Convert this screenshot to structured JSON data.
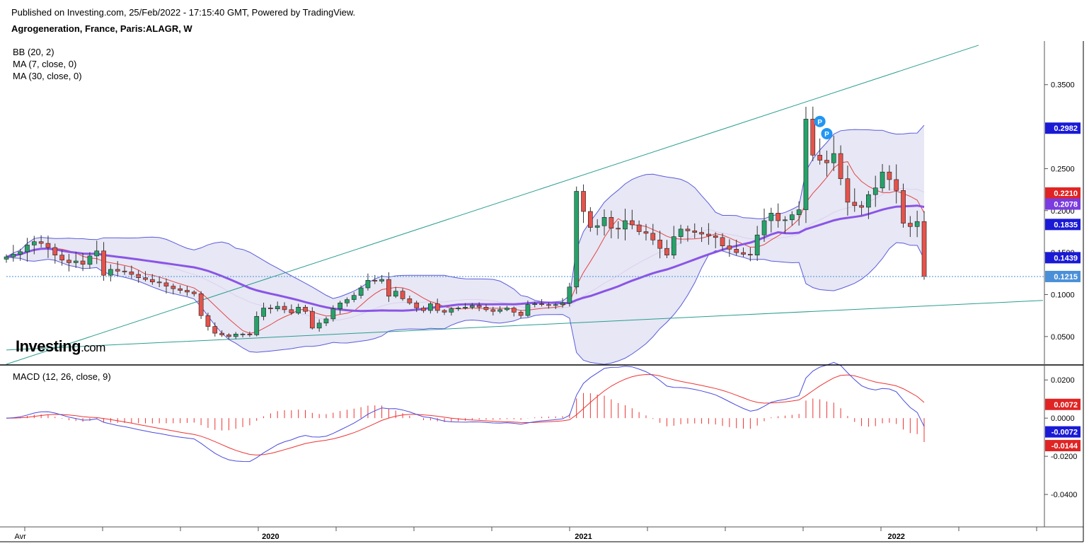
{
  "header": {
    "published": "Published on Investing.com, 25/Feb/2022 - 17:15:40 GMT, Powered by TradingView.",
    "title": "Agrogeneration, France, Paris:ALAGR, W"
  },
  "indicators": {
    "bb": "BB (20, 2)",
    "ma7": "MA (7, close, 0)",
    "ma30": "MA (30, close, 0)",
    "macd": "MACD (12, 26, close, 9)"
  },
  "logo": {
    "main": "Investing",
    "suffix": ".com"
  },
  "colors": {
    "up": "#26a269",
    "down": "#e5534b",
    "bb_line": "#5b5bdc",
    "bb_fill": "#e4e4f4",
    "ma7": "#e64545",
    "ma30": "#8a55e6",
    "trend": "#2a9d8f",
    "macd": "#4b4bdf",
    "signal": "#ee3333"
  },
  "chart_data": [
    {
      "type": "line",
      "subtype": "candlestick",
      "title": "Agrogeneration, France, Paris:ALAGR, W",
      "y_ticks": [
        "0.3500",
        "0.2500",
        "0.2000",
        "0.1500",
        "0.1000",
        "0.0500"
      ],
      "y_range": [
        0.017,
        0.402
      ],
      "x_labels": [
        "Avr",
        "2020",
        "2021",
        "2022"
      ],
      "price_tags": [
        {
          "value": 0.2982,
          "label": "0.2982",
          "color": "#1a1ad6"
        },
        {
          "value": 0.221,
          "label": "0.2210",
          "color": "#e02424"
        },
        {
          "value": 0.2078,
          "label": "0.2078",
          "color": "#7a3be0"
        },
        {
          "value": 0.1835,
          "label": "0.1835",
          "color": "#1a1ad6"
        },
        {
          "value": 0.1439,
          "label": "0.1439",
          "color": "#1a1ad6"
        },
        {
          "value": 0.1215,
          "label": "0.1215",
          "color": "#4a90d9"
        }
      ],
      "last_price": 0.1215,
      "markers": [
        {
          "label": "P",
          "index": 117
        },
        {
          "label": "P",
          "index": 118
        }
      ],
      "candles_close": [
        0.145,
        0.148,
        0.151,
        0.159,
        0.163,
        0.161,
        0.156,
        0.147,
        0.141,
        0.138,
        0.14,
        0.136,
        0.146,
        0.152,
        0.123,
        0.13,
        0.128,
        0.127,
        0.124,
        0.12,
        0.118,
        0.115,
        0.114,
        0.11,
        0.107,
        0.105,
        0.103,
        0.101,
        0.075,
        0.062,
        0.054,
        0.052,
        0.05,
        0.053,
        0.053,
        0.052,
        0.074,
        0.084,
        0.083,
        0.086,
        0.082,
        0.078,
        0.085,
        0.08,
        0.06,
        0.066,
        0.071,
        0.083,
        0.09,
        0.094,
        0.099,
        0.108,
        0.117,
        0.116,
        0.118,
        0.098,
        0.104,
        0.095,
        0.09,
        0.084,
        0.081,
        0.089,
        0.081,
        0.079,
        0.083,
        0.084,
        0.085,
        0.087,
        0.085,
        0.082,
        0.08,
        0.082,
        0.084,
        0.079,
        0.075,
        0.088,
        0.089,
        0.088,
        0.087,
        0.088,
        0.09,
        0.109,
        0.223,
        0.199,
        0.18,
        0.182,
        0.192,
        0.179,
        0.178,
        0.188,
        0.183,
        0.175,
        0.173,
        0.165,
        0.155,
        0.147,
        0.169,
        0.178,
        0.176,
        0.174,
        0.172,
        0.17,
        0.168,
        0.158,
        0.154,
        0.15,
        0.148,
        0.147,
        0.171,
        0.188,
        0.197,
        0.188,
        0.189,
        0.195,
        0.201,
        0.309,
        0.266,
        0.26,
        0.257,
        0.268,
        0.238,
        0.21,
        0.206,
        0.204,
        0.219,
        0.227,
        0.246,
        0.237,
        0.224,
        0.185,
        0.181,
        0.187,
        0.1215
      ]
    },
    {
      "type": "bar",
      "subtype": "macd",
      "title": "MACD (12, 26, close, 9)",
      "y_ticks": [
        "0.0200",
        "0.0000",
        "-0.0200",
        "-0.0400"
      ],
      "y_range": [
        -0.057,
        0.0275
      ],
      "tags": [
        {
          "value": 0.0072,
          "label": "0.0072",
          "color": "#e02424"
        },
        {
          "value": -0.0072,
          "label": "-0.0072",
          "color": "#1a1ad6"
        },
        {
          "value": -0.0144,
          "label": "-0.0144",
          "color": "#e02424"
        }
      ]
    }
  ]
}
